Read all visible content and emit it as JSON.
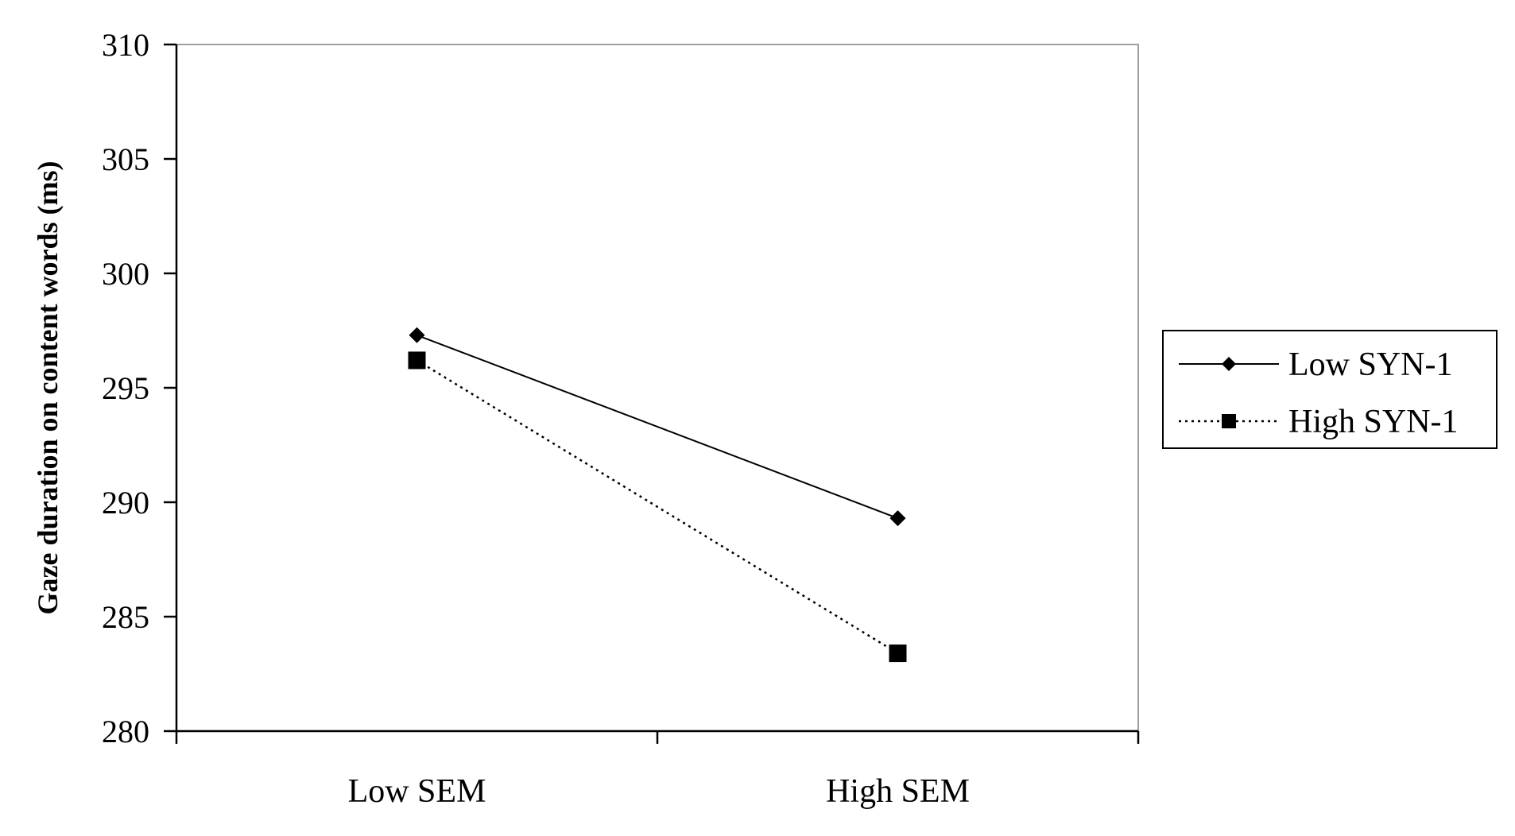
{
  "chart_data": {
    "type": "line",
    "title": "",
    "xlabel": "",
    "ylabel": "Gaze duration on content words (ms)",
    "categories": [
      "Low SEM",
      "High SEM"
    ],
    "ylim": [
      280,
      310
    ],
    "yticks": [
      "280",
      "285",
      "290",
      "295",
      "300",
      "305",
      "310"
    ],
    "grid": false,
    "legend_position": "right",
    "series": [
      {
        "name": "Low SYN-1",
        "values": [
          297.3,
          289.3
        ],
        "marker": "diamond",
        "line_style": "solid",
        "color": "#000000"
      },
      {
        "name": "High SYN-1",
        "values": [
          296.2,
          283.4
        ],
        "marker": "square",
        "line_style": "dotted",
        "color": "#000000"
      }
    ]
  }
}
